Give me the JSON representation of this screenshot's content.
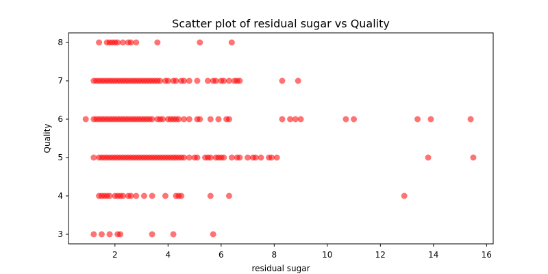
{
  "chart_data": {
    "type": "scatter",
    "title": "Scatter plot of residual sugar vs Quality",
    "xlabel": "residual sugar",
    "ylabel": "Quality",
    "xlim": [
      0.25,
      16.25
    ],
    "ylim": [
      2.75,
      8.25
    ],
    "xticks": [
      2,
      4,
      6,
      8,
      10,
      12,
      14,
      16
    ],
    "yticks": [
      3,
      4,
      5,
      6,
      7,
      8
    ],
    "grid": false,
    "marker_color": "#ff0000",
    "marker_alpha": 0.55,
    "series": [
      {
        "points": [
          [
            1.4,
            8
          ],
          [
            1.7,
            8
          ],
          [
            1.8,
            8
          ],
          [
            1.9,
            8
          ],
          [
            2.0,
            8
          ],
          [
            2.1,
            8
          ],
          [
            2.3,
            8
          ],
          [
            2.5,
            8
          ],
          [
            2.6,
            8
          ],
          [
            2.8,
            8
          ],
          [
            3.6,
            8
          ],
          [
            5.2,
            8
          ],
          [
            6.4,
            8
          ],
          [
            1.2,
            7
          ],
          [
            1.3,
            7
          ],
          [
            1.4,
            7
          ],
          [
            1.5,
            7
          ],
          [
            1.6,
            7
          ],
          [
            1.7,
            7
          ],
          [
            1.8,
            7
          ],
          [
            1.9,
            7
          ],
          [
            2.0,
            7
          ],
          [
            2.1,
            7
          ],
          [
            2.2,
            7
          ],
          [
            2.3,
            7
          ],
          [
            2.4,
            7
          ],
          [
            2.5,
            7
          ],
          [
            2.6,
            7
          ],
          [
            2.7,
            7
          ],
          [
            2.8,
            7
          ],
          [
            2.9,
            7
          ],
          [
            3.0,
            7
          ],
          [
            3.1,
            7
          ],
          [
            3.2,
            7
          ],
          [
            3.3,
            7
          ],
          [
            3.4,
            7
          ],
          [
            3.5,
            7
          ],
          [
            3.6,
            7
          ],
          [
            3.7,
            7
          ],
          [
            3.9,
            7
          ],
          [
            4.0,
            7
          ],
          [
            4.2,
            7
          ],
          [
            4.3,
            7
          ],
          [
            4.5,
            7
          ],
          [
            4.6,
            7
          ],
          [
            4.8,
            7
          ],
          [
            5.1,
            7
          ],
          [
            5.5,
            7
          ],
          [
            5.7,
            7
          ],
          [
            5.8,
            7
          ],
          [
            6.0,
            7
          ],
          [
            6.1,
            7
          ],
          [
            6.3,
            7
          ],
          [
            6.5,
            7
          ],
          [
            6.6,
            7
          ],
          [
            6.7,
            7
          ],
          [
            8.3,
            7
          ],
          [
            8.9,
            7
          ],
          [
            0.9,
            6
          ],
          [
            1.2,
            6
          ],
          [
            1.3,
            6
          ],
          [
            1.4,
            6
          ],
          [
            1.5,
            6
          ],
          [
            1.6,
            6
          ],
          [
            1.7,
            6
          ],
          [
            1.8,
            6
          ],
          [
            1.9,
            6
          ],
          [
            2.0,
            6
          ],
          [
            2.1,
            6
          ],
          [
            2.2,
            6
          ],
          [
            2.3,
            6
          ],
          [
            2.4,
            6
          ],
          [
            2.5,
            6
          ],
          [
            2.6,
            6
          ],
          [
            2.7,
            6
          ],
          [
            2.8,
            6
          ],
          [
            2.9,
            6
          ],
          [
            3.0,
            6
          ],
          [
            3.1,
            6
          ],
          [
            3.2,
            6
          ],
          [
            3.3,
            6
          ],
          [
            3.4,
            6
          ],
          [
            3.6,
            6
          ],
          [
            3.7,
            6
          ],
          [
            3.8,
            6
          ],
          [
            4.0,
            6
          ],
          [
            4.1,
            6
          ],
          [
            4.2,
            6
          ],
          [
            4.3,
            6
          ],
          [
            4.4,
            6
          ],
          [
            4.6,
            6
          ],
          [
            4.8,
            6
          ],
          [
            5.1,
            6
          ],
          [
            5.2,
            6
          ],
          [
            5.6,
            6
          ],
          [
            5.9,
            6
          ],
          [
            6.2,
            6
          ],
          [
            6.3,
            6
          ],
          [
            8.3,
            6
          ],
          [
            8.6,
            6
          ],
          [
            8.8,
            6
          ],
          [
            9.0,
            6
          ],
          [
            10.7,
            6
          ],
          [
            11.0,
            6
          ],
          [
            13.4,
            6
          ],
          [
            13.9,
            6
          ],
          [
            15.4,
            6
          ],
          [
            1.2,
            5
          ],
          [
            1.4,
            5
          ],
          [
            1.5,
            5
          ],
          [
            1.6,
            5
          ],
          [
            1.7,
            5
          ],
          [
            1.8,
            5
          ],
          [
            1.9,
            5
          ],
          [
            2.0,
            5
          ],
          [
            2.1,
            5
          ],
          [
            2.2,
            5
          ],
          [
            2.3,
            5
          ],
          [
            2.4,
            5
          ],
          [
            2.5,
            5
          ],
          [
            2.6,
            5
          ],
          [
            2.7,
            5
          ],
          [
            2.8,
            5
          ],
          [
            2.9,
            5
          ],
          [
            3.0,
            5
          ],
          [
            3.1,
            5
          ],
          [
            3.2,
            5
          ],
          [
            3.3,
            5
          ],
          [
            3.4,
            5
          ],
          [
            3.5,
            5
          ],
          [
            3.6,
            5
          ],
          [
            3.7,
            5
          ],
          [
            3.8,
            5
          ],
          [
            3.9,
            5
          ],
          [
            4.0,
            5
          ],
          [
            4.1,
            5
          ],
          [
            4.2,
            5
          ],
          [
            4.3,
            5
          ],
          [
            4.4,
            5
          ],
          [
            4.5,
            5
          ],
          [
            4.6,
            5
          ],
          [
            4.8,
            5
          ],
          [
            5.0,
            5
          ],
          [
            5.1,
            5
          ],
          [
            5.4,
            5
          ],
          [
            5.5,
            5
          ],
          [
            5.6,
            5
          ],
          [
            5.8,
            5
          ],
          [
            5.9,
            5
          ],
          [
            6.0,
            5
          ],
          [
            6.1,
            5
          ],
          [
            6.4,
            5
          ],
          [
            6.6,
            5
          ],
          [
            6.7,
            5
          ],
          [
            7.0,
            5
          ],
          [
            7.2,
            5
          ],
          [
            7.3,
            5
          ],
          [
            7.5,
            5
          ],
          [
            7.8,
            5
          ],
          [
            7.9,
            5
          ],
          [
            8.1,
            5
          ],
          [
            13.8,
            5
          ],
          [
            15.5,
            5
          ],
          [
            1.4,
            4
          ],
          [
            1.5,
            4
          ],
          [
            1.6,
            4
          ],
          [
            1.7,
            4
          ],
          [
            1.8,
            4
          ],
          [
            2.0,
            4
          ],
          [
            2.1,
            4
          ],
          [
            2.2,
            4
          ],
          [
            2.3,
            4
          ],
          [
            2.5,
            4
          ],
          [
            2.6,
            4
          ],
          [
            2.8,
            4
          ],
          [
            3.1,
            4
          ],
          [
            3.4,
            4
          ],
          [
            3.9,
            4
          ],
          [
            4.3,
            4
          ],
          [
            4.4,
            4
          ],
          [
            4.5,
            4
          ],
          [
            5.6,
            4
          ],
          [
            6.3,
            4
          ],
          [
            12.9,
            4
          ],
          [
            1.2,
            3
          ],
          [
            1.5,
            3
          ],
          [
            1.8,
            3
          ],
          [
            2.1,
            3
          ],
          [
            2.2,
            3
          ],
          [
            3.4,
            3
          ],
          [
            4.2,
            3
          ],
          [
            5.7,
            3
          ]
        ]
      }
    ]
  }
}
